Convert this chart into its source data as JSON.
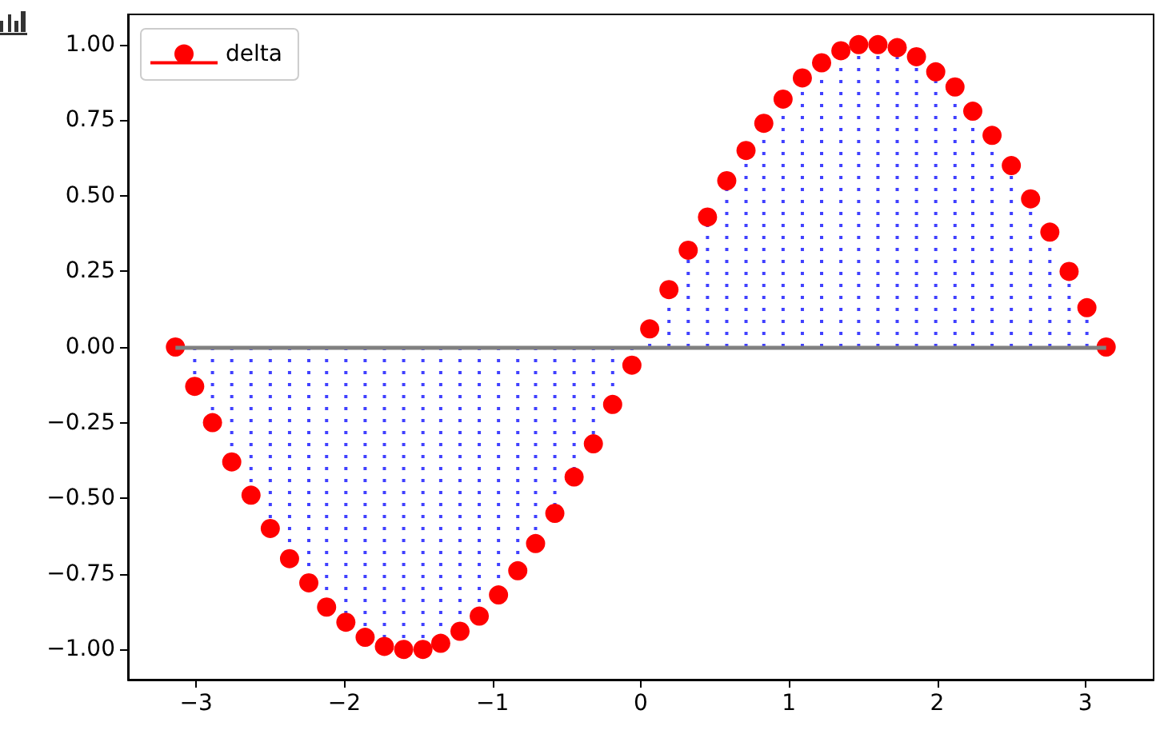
{
  "chart_data": {
    "type": "lollipop",
    "x": [
      -3.14,
      -3.01,
      -2.89,
      -2.76,
      -2.63,
      -2.5,
      -2.37,
      -2.24,
      -2.12,
      -1.99,
      -1.86,
      -1.73,
      -1.6,
      -1.47,
      -1.35,
      -1.22,
      -1.09,
      -0.96,
      -0.83,
      -0.71,
      -0.58,
      -0.45,
      -0.32,
      -0.19,
      -0.06,
      0.06,
      0.19,
      0.32,
      0.45,
      0.58,
      0.71,
      0.83,
      0.96,
      1.09,
      1.22,
      1.35,
      1.47,
      1.6,
      1.73,
      1.86,
      1.99,
      2.12,
      2.24,
      2.37,
      2.5,
      2.63,
      2.76,
      2.89,
      3.01,
      3.14
    ],
    "series": [
      {
        "name": "delta",
        "color": "#ff0000",
        "values": [
          0,
          -0.13,
          -0.25,
          -0.38,
          -0.49,
          -0.6,
          -0.7,
          -0.78,
          -0.86,
          -0.91,
          -0.96,
          -0.99,
          -1.0,
          -1.0,
          -0.98,
          -0.94,
          -0.89,
          -0.82,
          -0.74,
          -0.65,
          -0.55,
          -0.43,
          -0.32,
          -0.19,
          -0.06,
          0.06,
          0.19,
          0.32,
          0.43,
          0.55,
          0.65,
          0.74,
          0.82,
          0.89,
          0.94,
          0.98,
          1.0,
          1.0,
          0.99,
          0.96,
          0.91,
          0.86,
          0.78,
          0.7,
          0.6,
          0.49,
          0.38,
          0.25,
          0.13,
          0
        ]
      }
    ],
    "xlim": [
      -3.46,
      3.46
    ],
    "xticks": [
      {
        "value": -3,
        "label": "−3"
      },
      {
        "value": -2,
        "label": "−2"
      },
      {
        "value": -1,
        "label": "−1"
      },
      0,
      1,
      2,
      3
    ],
    "ylim": [
      -1.1,
      1.1
    ],
    "yticks": [
      {
        "value": -1,
        "label": "−1.00"
      },
      {
        "value": -0.75,
        "label": "−0.75"
      },
      {
        "value": -0.5,
        "label": "−0.50"
      },
      {
        "value": -0.25,
        "label": "−0.25"
      },
      {
        "value": 0,
        "label": "0.00"
      },
      {
        "value": 0.25,
        "label": "0.25"
      },
      {
        "value": 0.5,
        "label": "0.50"
      },
      {
        "value": 0.75,
        "label": "0.75"
      },
      {
        "value": 1,
        "label": "1.00"
      }
    ],
    "ref_lines": [
      {
        "axis": "y",
        "value": 0,
        "color": "#808080"
      }
    ],
    "marker": "circle",
    "line_style": "dotted",
    "legend": "top left"
  }
}
